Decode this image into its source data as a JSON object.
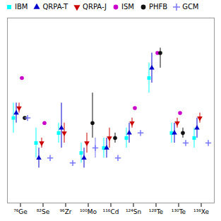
{
  "chart_data": {
    "type": "errorbar",
    "categories": [
      "⁷⁶Ge",
      "⁸²Se",
      "⁹⁶Zr",
      "¹⁰⁰Mo",
      "¹¹⁶Cd",
      "¹²⁴Sn",
      "¹²⁸Te",
      "¹³⁰Te",
      "¹³⁶Xe"
    ],
    "series": [
      {
        "name": "IBM",
        "color": "cyan",
        "marker": "square",
        "values": [
          55,
          50,
          52,
          48,
          49,
          51,
          63,
          52,
          51
        ],
        "yerr_lo": [
          3,
          3,
          2,
          2,
          2,
          2,
          3,
          2,
          2
        ],
        "yerr_hi": [
          3,
          3,
          2,
          2,
          2,
          2,
          3,
          2,
          2
        ]
      },
      {
        "name": "QRPA-T",
        "color": "#0000cc",
        "marker": "triangle-up",
        "values": [
          56,
          47,
          53,
          47,
          49,
          52,
          65,
          52,
          53
        ],
        "yerr_lo": [
          2,
          2,
          4,
          2,
          2,
          2,
          3,
          2,
          2
        ],
        "yerr_hi": [
          2,
          2,
          5,
          2,
          2,
          2,
          3,
          2,
          2
        ]
      },
      {
        "name": "QRPA-J",
        "color": "#cc0000",
        "marker": "triangle-down",
        "values": [
          57,
          50,
          52,
          50,
          51,
          54,
          null,
          54,
          55
        ],
        "yerr_lo": [
          1,
          1,
          2,
          2,
          2,
          1,
          null,
          1,
          1
        ],
        "yerr_hi": [
          1,
          1,
          2,
          2,
          2,
          1,
          null,
          1,
          1
        ]
      },
      {
        "name": "ISM",
        "color": "#cc00cc",
        "marker": "circle",
        "values": [
          63,
          54,
          null,
          null,
          null,
          57,
          68,
          56,
          null
        ],
        "yerr_lo": [
          0,
          0,
          null,
          null,
          null,
          0,
          0,
          0,
          null
        ],
        "yerr_hi": [
          0,
          0,
          null,
          null,
          null,
          0,
          0,
          0,
          null
        ]
      },
      {
        "name": "PHFB",
        "color": "#111111",
        "marker": "circle",
        "values": [
          55,
          null,
          null,
          54,
          51,
          null,
          68,
          52,
          null
        ],
        "yerr_lo": [
          0,
          null,
          null,
          3,
          1,
          null,
          3,
          1,
          null
        ],
        "yerr_hi": [
          0,
          null,
          null,
          6,
          1,
          null,
          1,
          1,
          null
        ]
      },
      {
        "name": "GCM",
        "color": "#7777ff",
        "marker": "plus",
        "values": [
          55,
          47,
          46,
          49,
          47,
          52,
          null,
          50,
          50
        ],
        "yerr_lo": [
          0,
          0,
          0,
          2,
          0,
          0,
          null,
          0,
          0
        ],
        "yerr_hi": [
          0,
          0,
          0,
          2,
          0,
          0,
          null,
          0,
          0
        ]
      }
    ],
    "ylim": [
      38,
      75
    ],
    "tick_labels": "x",
    "grid": false,
    "legend": "upper left"
  }
}
